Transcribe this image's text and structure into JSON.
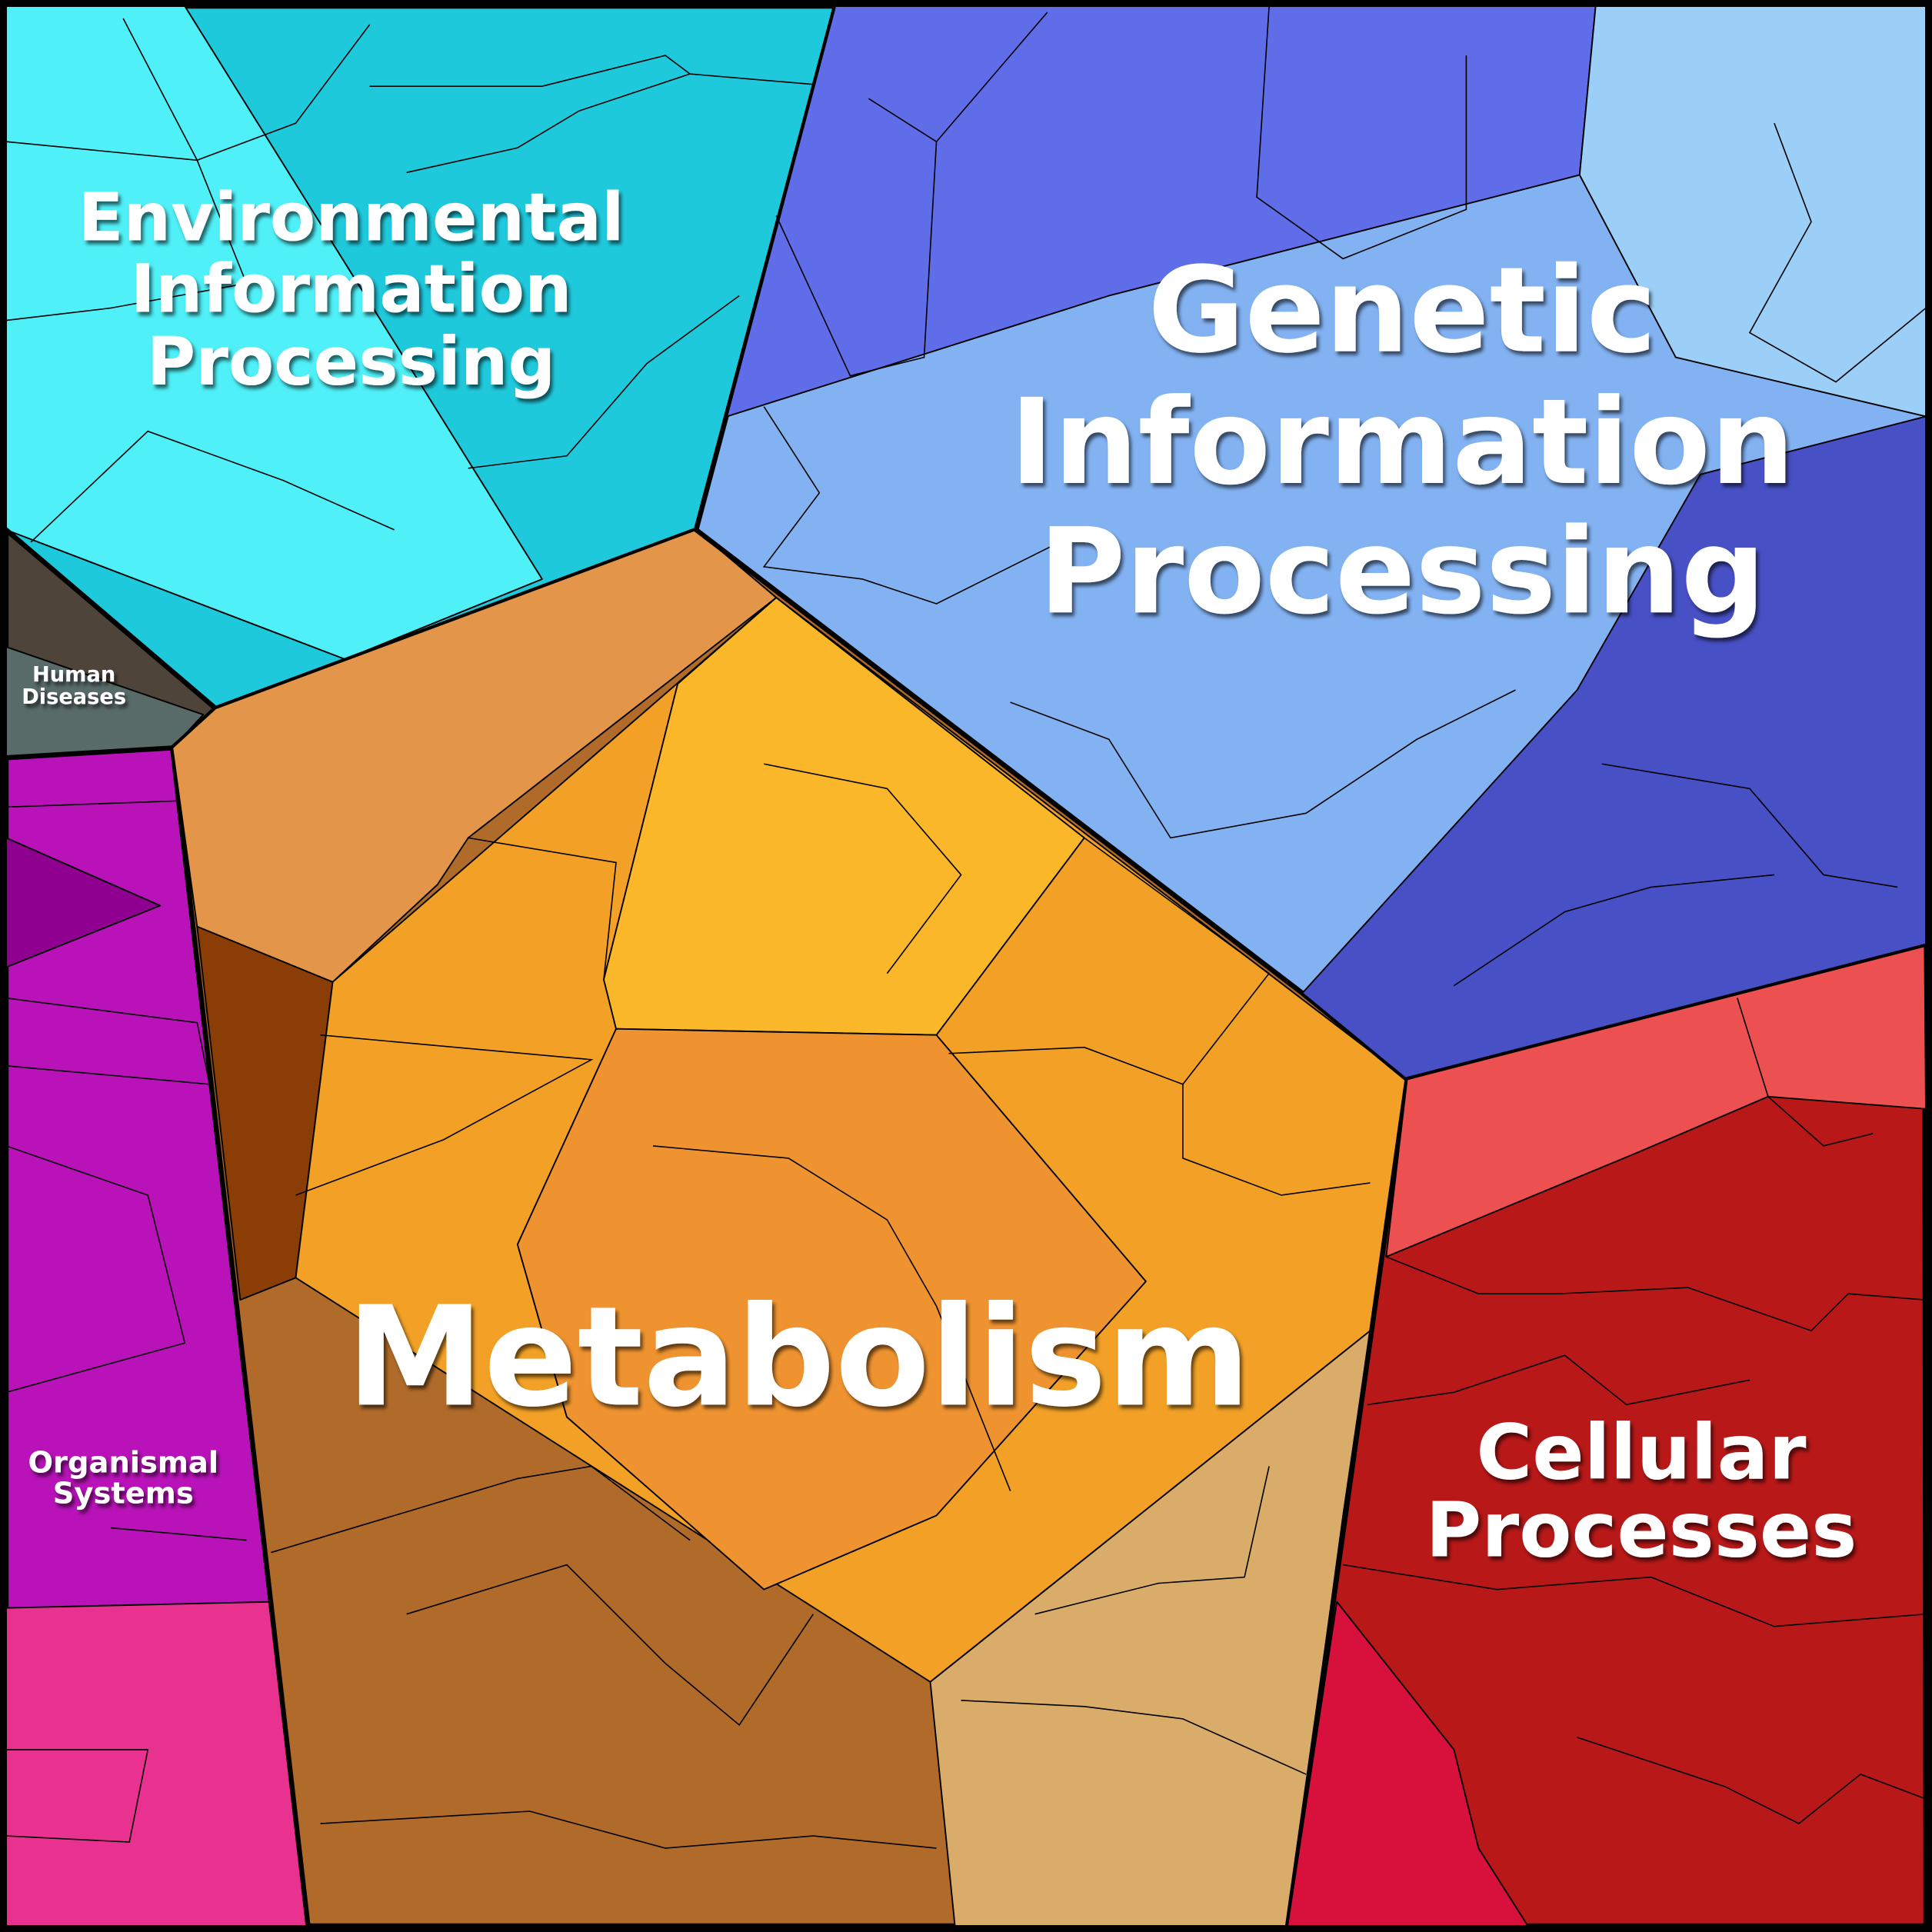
{
  "regions": [
    {
      "label_lines": [
        "Environmental",
        "Information",
        "Processing"
      ]
    },
    {
      "label_lines": [
        "Genetic",
        "Information",
        "Processing"
      ]
    },
    {
      "label_lines": [
        "Metabolism"
      ]
    },
    {
      "label_lines": [
        "Cellular",
        "Processes"
      ]
    },
    {
      "label_lines": [
        "Organismal",
        "Systems"
      ]
    },
    {
      "label_lines": [
        "Human",
        "Diseases"
      ]
    }
  ]
}
